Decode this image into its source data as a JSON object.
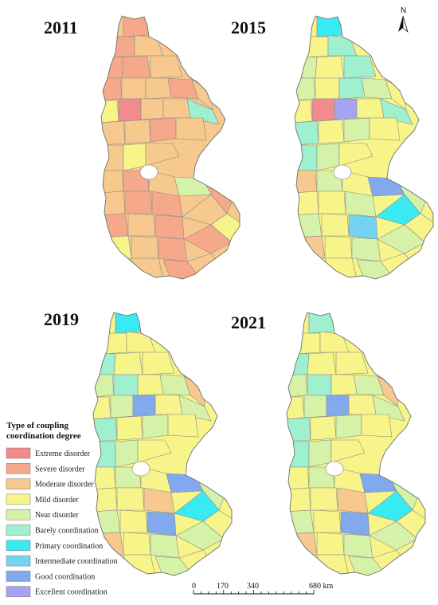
{
  "panels": [
    {
      "year": "2011",
      "dominant": "Moderate disorder",
      "secondary": "Severe disorder",
      "accent": [
        "Extreme disorder",
        "Barely coordination",
        "Mild disorder",
        "Near disorder"
      ]
    },
    {
      "year": "2015",
      "dominant": "Mild disorder",
      "secondary": "Near disorder",
      "accent": [
        "Barely coordination",
        "Primary coordination",
        "Excellent coordination",
        "Good coordination",
        "Extreme disorder",
        "Moderate disorder"
      ]
    },
    {
      "year": "2019",
      "dominant": "Mild disorder",
      "secondary": "Near disorder",
      "accent": [
        "Barely coordination",
        "Primary coordination",
        "Good coordination",
        "Moderate disorder"
      ]
    },
    {
      "year": "2021",
      "dominant": "Mild disorder",
      "secondary": "Near disorder",
      "accent": [
        "Barely coordination",
        "Primary coordination",
        "Good coordination",
        "Moderate disorder"
      ]
    }
  ],
  "legend": {
    "title_line1": "Type of coupling",
    "title_line2": "coordination degree",
    "items": [
      {
        "label": "Extreme disorder",
        "color": "#F28B8B"
      },
      {
        "label": "Severe disorder",
        "color": "#F5A98A"
      },
      {
        "label": "Moderate disorder",
        "color": "#F7C98E"
      },
      {
        "label": "Mild disorder",
        "color": "#F7F58A"
      },
      {
        "label": "Near disorder",
        "color": "#D6F2A8"
      },
      {
        "label": "Barely coordination",
        "color": "#9EF0CF"
      },
      {
        "label": "Primary coordination",
        "color": "#39EAF2"
      },
      {
        "label": "Intermediate coordination",
        "color": "#74D3F0"
      },
      {
        "label": "Good coordination",
        "color": "#82A8EE"
      },
      {
        "label": "Excellent coordination",
        "color": "#A7A2F2"
      }
    ]
  },
  "scale_bar": {
    "labels": [
      "0",
      "170",
      "340",
      "680 km"
    ]
  },
  "north_arrow": {
    "label": "N",
    "icon": "north-arrow-icon"
  }
}
